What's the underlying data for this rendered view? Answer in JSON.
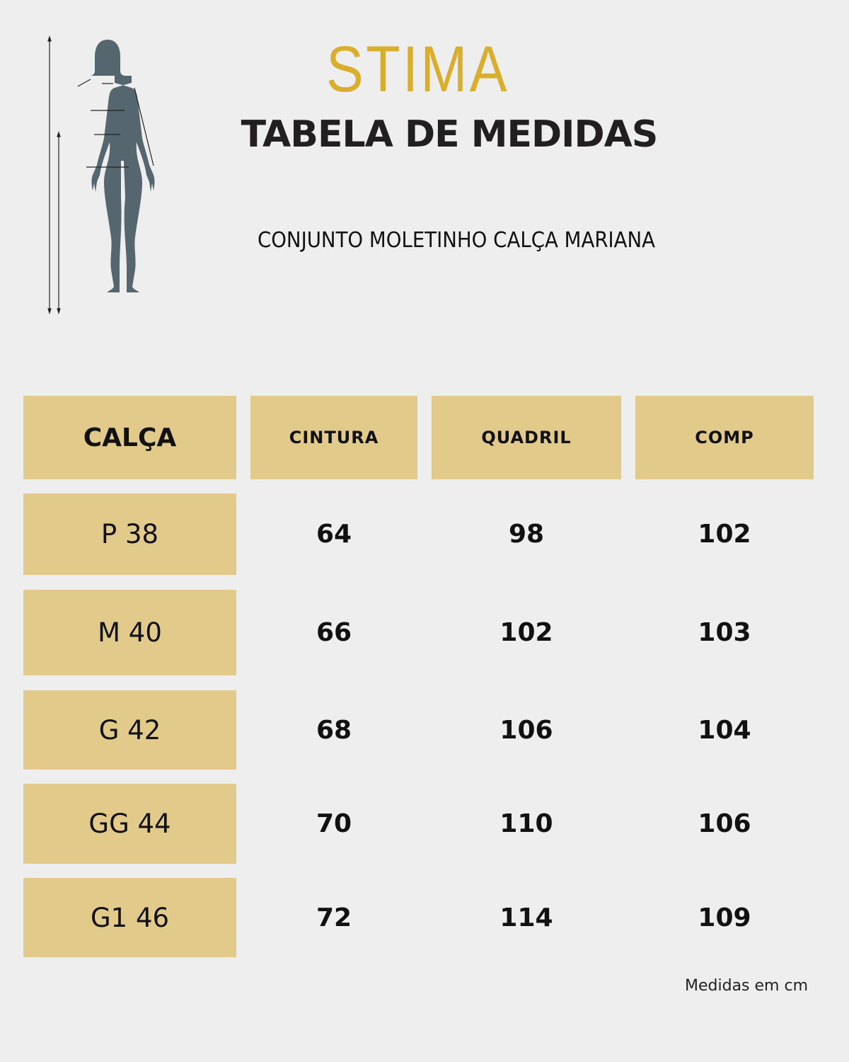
{
  "logo": {
    "text": "STIMA",
    "color": "#D9AE2C"
  },
  "title": "TABELA DE MEDIDAS",
  "subtitle": "CONJUNTO MOLETINHO CALÇA MARIANA",
  "figure_icon": "female-body-measurement-silhouette",
  "colors": {
    "header_fill": "#E2CB8A",
    "background": "#EEEEEE",
    "figure": "#56666F"
  },
  "table": {
    "headers": [
      "CALÇA",
      "CINTURA",
      "QUADRIL",
      "COMP"
    ],
    "rows": [
      {
        "size": "P 38",
        "values": [
          "64",
          "98",
          "102"
        ]
      },
      {
        "size": "M 40",
        "values": [
          "66",
          "102",
          "103"
        ]
      },
      {
        "size": "G 42",
        "values": [
          "68",
          "106",
          "104"
        ]
      },
      {
        "size": "GG 44",
        "values": [
          "70",
          "110",
          "106"
        ]
      },
      {
        "size": "G1 46",
        "values": [
          "72",
          "114",
          "109"
        ]
      }
    ]
  },
  "footnote": "Medidas em cm"
}
